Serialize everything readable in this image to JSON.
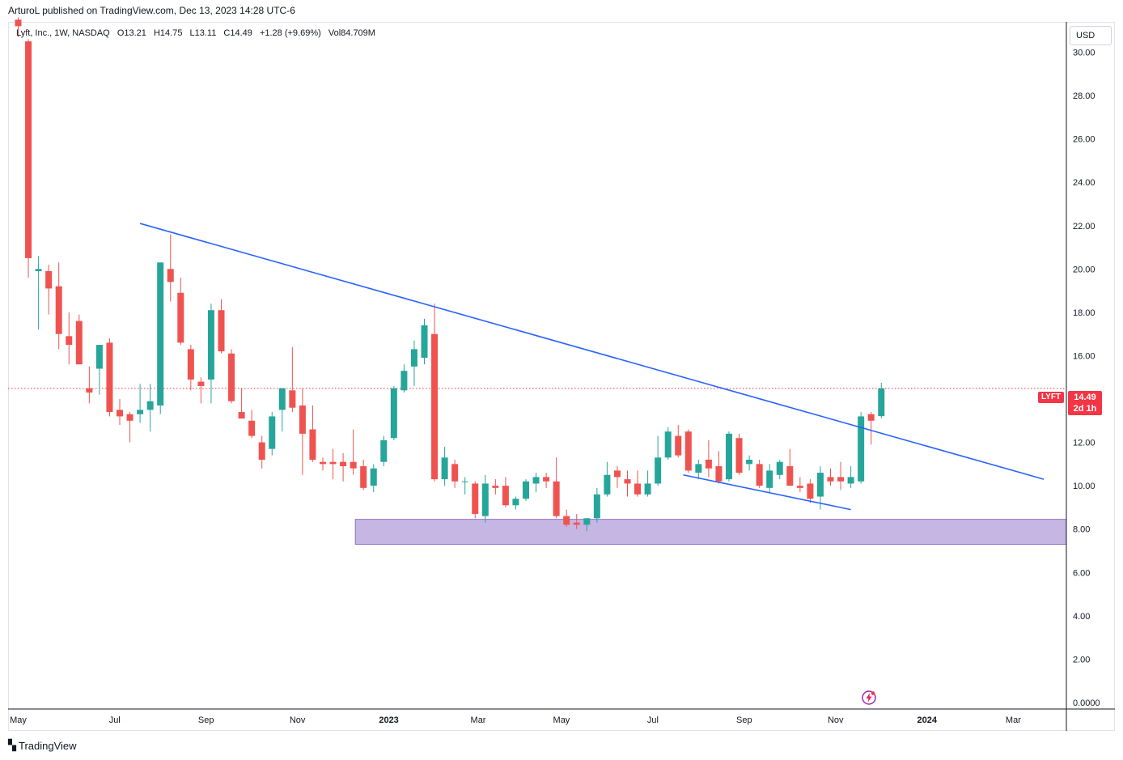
{
  "header": {
    "publisher_line": "ArturoL published on TradingView.com, Dec 13, 2023 14:28 UTC-6"
  },
  "legend": {
    "symbol": "Lyft, Inc., 1W, NASDAQ",
    "open": "O13.21",
    "high": "H14.75",
    "low": "L13.11",
    "close": "C14.49",
    "change": "+1.28 (+9.69%)",
    "volume": "Vol84.709M"
  },
  "currency_label": "USD",
  "price_tag": {
    "ticker": "LYFT",
    "price": "14.49",
    "countdown": "2d 1h"
  },
  "brand": {
    "name": "TradingView"
  },
  "colors": {
    "up": "#26a69a",
    "down": "#ef5350",
    "trendline": "#2962ff",
    "zone": "#b39ddb",
    "last_price": "#f23645"
  },
  "chart_data": {
    "type": "candlestick",
    "title": "Lyft, Inc., 1W, NASDAQ",
    "interval": "1W",
    "currency": "USD",
    "ylim": [
      -0.3,
      31.4
    ],
    "y_ticks": [
      "0.0000",
      "2.00",
      "4.00",
      "6.00",
      "8.00",
      "10.00",
      "12.00",
      "14.00",
      "16.00",
      "18.00",
      "20.00",
      "22.00",
      "24.00",
      "26.00",
      "28.00",
      "30.00"
    ],
    "x_ticks": [
      {
        "label": "May",
        "week": 0
      },
      {
        "label": "Jul",
        "week": 9.5
      },
      {
        "label": "Sep",
        "week": 18.5
      },
      {
        "label": "Nov",
        "week": 27.5
      },
      {
        "label": "2023",
        "week": 36.5
      },
      {
        "label": "Mar",
        "week": 45.3
      },
      {
        "label": "May",
        "week": 53.5
      },
      {
        "label": "Jul",
        "week": 62.5
      },
      {
        "label": "Sep",
        "week": 71.5
      },
      {
        "label": "Nov",
        "week": 80.5
      },
      {
        "label": "2024",
        "week": 89.5
      },
      {
        "label": "Mar",
        "week": 98
      }
    ],
    "last_price": 14.49,
    "candles": [
      {
        "o": 31.5,
        "h": 31.6,
        "l": 30.7,
        "c": 31.2
      },
      {
        "o": 30.5,
        "h": 30.6,
        "l": 19.6,
        "c": 20.5
      },
      {
        "o": 19.9,
        "h": 20.6,
        "l": 17.2,
        "c": 20.0
      },
      {
        "o": 19.9,
        "h": 20.2,
        "l": 17.9,
        "c": 19.1
      },
      {
        "o": 19.2,
        "h": 20.3,
        "l": 16.3,
        "c": 17.0
      },
      {
        "o": 16.9,
        "h": 18.0,
        "l": 15.6,
        "c": 16.5
      },
      {
        "o": 17.6,
        "h": 17.9,
        "l": 15.6,
        "c": 15.6
      },
      {
        "o": 14.5,
        "h": 15.5,
        "l": 13.8,
        "c": 14.3
      },
      {
        "o": 15.4,
        "h": 16.5,
        "l": 14.2,
        "c": 16.5
      },
      {
        "o": 16.6,
        "h": 16.8,
        "l": 13.2,
        "c": 13.4
      },
      {
        "o": 13.5,
        "h": 14.0,
        "l": 12.8,
        "c": 13.2
      },
      {
        "o": 13.3,
        "h": 13.4,
        "l": 12.0,
        "c": 13.0
      },
      {
        "o": 13.3,
        "h": 14.7,
        "l": 12.9,
        "c": 13.5
      },
      {
        "o": 13.5,
        "h": 14.7,
        "l": 12.5,
        "c": 13.9
      },
      {
        "o": 13.7,
        "h": 20.3,
        "l": 13.3,
        "c": 20.3
      },
      {
        "o": 20.0,
        "h": 21.6,
        "l": 18.5,
        "c": 19.4
      },
      {
        "o": 18.9,
        "h": 19.6,
        "l": 16.5,
        "c": 16.6
      },
      {
        "o": 16.3,
        "h": 16.5,
        "l": 14.4,
        "c": 14.9
      },
      {
        "o": 14.8,
        "h": 15.0,
        "l": 13.8,
        "c": 14.6
      },
      {
        "o": 14.9,
        "h": 18.4,
        "l": 13.8,
        "c": 18.1
      },
      {
        "o": 18.1,
        "h": 18.6,
        "l": 16.1,
        "c": 16.2
      },
      {
        "o": 16.1,
        "h": 16.3,
        "l": 13.8,
        "c": 13.9
      },
      {
        "o": 13.4,
        "h": 14.5,
        "l": 13.1,
        "c": 13.1
      },
      {
        "o": 13.0,
        "h": 13.5,
        "l": 12.2,
        "c": 12.3
      },
      {
        "o": 12.0,
        "h": 12.3,
        "l": 10.8,
        "c": 11.2
      },
      {
        "o": 11.7,
        "h": 13.4,
        "l": 11.4,
        "c": 13.2
      },
      {
        "o": 13.5,
        "h": 14.5,
        "l": 12.5,
        "c": 14.5
      },
      {
        "o": 14.4,
        "h": 16.4,
        "l": 13.4,
        "c": 13.6
      },
      {
        "o": 13.7,
        "h": 14.5,
        "l": 10.5,
        "c": 12.4
      },
      {
        "o": 12.6,
        "h": 13.7,
        "l": 11.1,
        "c": 11.2
      },
      {
        "o": 11.1,
        "h": 11.3,
        "l": 10.7,
        "c": 11.0
      },
      {
        "o": 11.1,
        "h": 11.7,
        "l": 10.3,
        "c": 11.0
      },
      {
        "o": 11.1,
        "h": 11.5,
        "l": 10.2,
        "c": 10.9
      },
      {
        "o": 11.1,
        "h": 12.6,
        "l": 10.5,
        "c": 10.8
      },
      {
        "o": 10.9,
        "h": 11.2,
        "l": 9.8,
        "c": 9.9
      },
      {
        "o": 10.0,
        "h": 11.0,
        "l": 9.7,
        "c": 10.8
      },
      {
        "o": 11.1,
        "h": 12.3,
        "l": 10.9,
        "c": 12.1
      },
      {
        "o": 12.2,
        "h": 14.6,
        "l": 12.1,
        "c": 14.5
      },
      {
        "o": 14.4,
        "h": 15.6,
        "l": 14.3,
        "c": 15.3
      },
      {
        "o": 15.5,
        "h": 16.7,
        "l": 14.6,
        "c": 16.3
      },
      {
        "o": 15.9,
        "h": 17.7,
        "l": 15.6,
        "c": 17.4
      },
      {
        "o": 17.0,
        "h": 18.4,
        "l": 10.2,
        "c": 10.3
      },
      {
        "o": 10.3,
        "h": 11.8,
        "l": 10.0,
        "c": 11.3
      },
      {
        "o": 11.0,
        "h": 11.2,
        "l": 9.9,
        "c": 10.2
      },
      {
        "o": 10.2,
        "h": 10.4,
        "l": 9.6,
        "c": 10.2
      },
      {
        "o": 10.1,
        "h": 10.2,
        "l": 8.5,
        "c": 8.7
      },
      {
        "o": 8.6,
        "h": 10.5,
        "l": 8.3,
        "c": 10.1
      },
      {
        "o": 10.0,
        "h": 10.3,
        "l": 9.6,
        "c": 9.9
      },
      {
        "o": 10.0,
        "h": 10.4,
        "l": 9.0,
        "c": 9.1
      },
      {
        "o": 9.1,
        "h": 9.5,
        "l": 8.9,
        "c": 9.4
      },
      {
        "o": 9.4,
        "h": 10.3,
        "l": 9.3,
        "c": 10.2
      },
      {
        "o": 10.1,
        "h": 10.6,
        "l": 9.7,
        "c": 10.4
      },
      {
        "o": 10.4,
        "h": 10.6,
        "l": 9.9,
        "c": 10.2
      },
      {
        "o": 10.2,
        "h": 11.3,
        "l": 8.5,
        "c": 8.6
      },
      {
        "o": 8.6,
        "h": 8.9,
        "l": 8.1,
        "c": 8.2
      },
      {
        "o": 8.3,
        "h": 8.7,
        "l": 8.0,
        "c": 8.2
      },
      {
        "o": 8.2,
        "h": 8.5,
        "l": 7.9,
        "c": 8.5
      },
      {
        "o": 8.5,
        "h": 9.9,
        "l": 8.3,
        "c": 9.6
      },
      {
        "o": 9.6,
        "h": 11.1,
        "l": 9.5,
        "c": 10.5
      },
      {
        "o": 10.7,
        "h": 10.9,
        "l": 9.9,
        "c": 10.4
      },
      {
        "o": 10.3,
        "h": 10.7,
        "l": 9.5,
        "c": 10.1
      },
      {
        "o": 10.1,
        "h": 10.7,
        "l": 9.5,
        "c": 9.6
      },
      {
        "o": 9.6,
        "h": 10.7,
        "l": 9.5,
        "c": 10.1
      },
      {
        "o": 10.1,
        "h": 12.3,
        "l": 10.0,
        "c": 11.3
      },
      {
        "o": 11.3,
        "h": 12.7,
        "l": 11.2,
        "c": 12.5
      },
      {
        "o": 12.3,
        "h": 12.8,
        "l": 11.3,
        "c": 11.4
      },
      {
        "o": 12.5,
        "h": 12.6,
        "l": 10.6,
        "c": 10.7
      },
      {
        "o": 10.6,
        "h": 11.2,
        "l": 10.3,
        "c": 11.0
      },
      {
        "o": 11.2,
        "h": 12.1,
        "l": 10.4,
        "c": 10.8
      },
      {
        "o": 10.9,
        "h": 11.6,
        "l": 10.1,
        "c": 10.2
      },
      {
        "o": 10.3,
        "h": 12.5,
        "l": 10.2,
        "c": 12.4
      },
      {
        "o": 12.2,
        "h": 12.4,
        "l": 10.5,
        "c": 10.6
      },
      {
        "o": 11.0,
        "h": 11.4,
        "l": 10.7,
        "c": 11.2
      },
      {
        "o": 11.0,
        "h": 11.2,
        "l": 9.9,
        "c": 10.0
      },
      {
        "o": 9.9,
        "h": 11.0,
        "l": 9.7,
        "c": 10.7
      },
      {
        "o": 10.5,
        "h": 11.2,
        "l": 10.3,
        "c": 11.1
      },
      {
        "o": 10.9,
        "h": 11.7,
        "l": 10.0,
        "c": 10.0
      },
      {
        "o": 10.0,
        "h": 10.4,
        "l": 9.7,
        "c": 9.9
      },
      {
        "o": 10.1,
        "h": 10.3,
        "l": 9.2,
        "c": 9.4
      },
      {
        "o": 9.5,
        "h": 10.9,
        "l": 8.9,
        "c": 10.6
      },
      {
        "o": 10.4,
        "h": 10.8,
        "l": 10.0,
        "c": 10.2
      },
      {
        "o": 10.4,
        "h": 11.1,
        "l": 9.8,
        "c": 10.2
      },
      {
        "o": 10.1,
        "h": 10.9,
        "l": 9.9,
        "c": 10.4
      },
      {
        "o": 10.2,
        "h": 13.4,
        "l": 10.1,
        "c": 13.2
      },
      {
        "o": 13.3,
        "h": 13.4,
        "l": 11.9,
        "c": 13.0
      },
      {
        "o": 13.21,
        "h": 14.75,
        "l": 13.11,
        "c": 14.49
      }
    ],
    "annotations": [
      {
        "type": "trendline",
        "from": {
          "week": 12,
          "price": 22.1
        },
        "to": {
          "week": 101,
          "price": 10.3
        }
      },
      {
        "type": "trendline",
        "from": {
          "week": 65.5,
          "price": 10.5
        },
        "to": {
          "week": 82,
          "price": 8.9
        }
      },
      {
        "type": "zone",
        "from_week": 33.2,
        "price_low": 7.3,
        "price_high": 8.45
      }
    ]
  }
}
